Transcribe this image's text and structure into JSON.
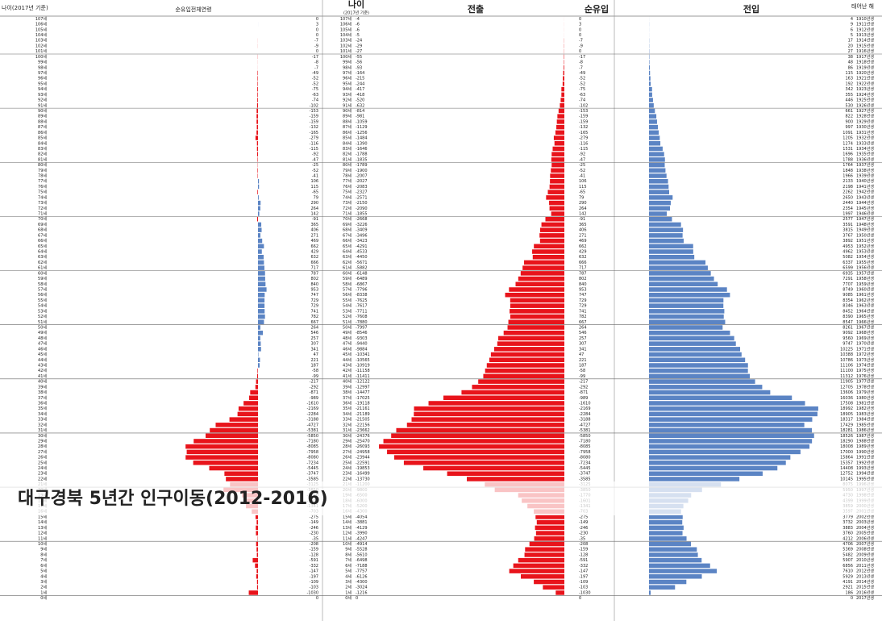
{
  "chart_data": {
    "type": "pyramid",
    "title": "대구경북 5년간 인구이동(2012-2016)",
    "headers": {
      "age_left": "나이(2017년 기준)",
      "total_net": "순유입전체연령",
      "age": "나이",
      "age_note": "(2017년 기준)",
      "out": "전출",
      "net": "순유입",
      "in": "전입",
      "birth": "태어난 해"
    },
    "ages": [
      "107세",
      "106세",
      "105세",
      "104세",
      "103세",
      "102세",
      "101세",
      "100세",
      "99세",
      "98세",
      "97세",
      "96세",
      "95세",
      "94세",
      "93세",
      "92세",
      "91세",
      "90세",
      "89세",
      "88세",
      "87세",
      "86세",
      "85세",
      "84세",
      "83세",
      "82세",
      "81세",
      "80세",
      "79세",
      "78세",
      "77세",
      "76세",
      "75세",
      "74세",
      "73세",
      "72세",
      "71세",
      "70세",
      "69세",
      "68세",
      "67세",
      "66세",
      "65세",
      "64세",
      "63세",
      "62세",
      "61세",
      "60세",
      "59세",
      "58세",
      "57세",
      "56세",
      "55세",
      "54세",
      "53세",
      "52세",
      "51세",
      "50세",
      "49세",
      "48세",
      "47세",
      "46세",
      "45세",
      "44세",
      "43세",
      "42세",
      "41세",
      "40세",
      "39세",
      "38세",
      "37세",
      "36세",
      "35세",
      "34세",
      "33세",
      "32세",
      "31세",
      "30세",
      "29세",
      "28세",
      "27세",
      "26세",
      "25세",
      "24세",
      "23세",
      "22세",
      "21세",
      "20세",
      "19세",
      "18세",
      "17세",
      "16세",
      "15세",
      "14세",
      "13세",
      "12세",
      "11세",
      "10세",
      "9세",
      "8세",
      "7세",
      "6세",
      "5세",
      "4세",
      "3세",
      "2세",
      "1세",
      "0세"
    ],
    "birth_years": [
      "1910년생",
      "1911년생",
      "1912년생",
      "1913년생",
      "1914년생",
      "1915년생",
      "1916년생",
      "1917년생",
      "1918년생",
      "1919년생",
      "1920년생",
      "1921년생",
      "1922년생",
      "1923년생",
      "1924년생",
      "1925년생",
      "1926년생",
      "1927년생",
      "1928년생",
      "1929년생",
      "1930년생",
      "1931년생",
      "1932년생",
      "1933년생",
      "1934년생",
      "1935년생",
      "1936년생",
      "1937년생",
      "1938년생",
      "1939년생",
      "1940년생",
      "1941년생",
      "1942년생",
      "1943년생",
      "1944년생",
      "1945년생",
      "1946년생",
      "1947년생",
      "1948년생",
      "1949년생",
      "1950년생",
      "1951년생",
      "1952년생",
      "1953년생",
      "1954년생",
      "1955년생",
      "1956년생",
      "1957년생",
      "1958년생",
      "1959년생",
      "1960년생",
      "1961년생",
      "1962년생",
      "1963년생",
      "1964년생",
      "1965년생",
      "1966년생",
      "1967년생",
      "1968년생",
      "1969년생",
      "1970년생",
      "1971년생",
      "1972년생",
      "1973년생",
      "1974년생",
      "1975년생",
      "1976년생",
      "1977년생",
      "1978년생",
      "1979년생",
      "1980년생",
      "1981년생",
      "1982년생",
      "1983년생",
      "1984년생",
      "1985년생",
      "1986년생",
      "1987년생",
      "1988년생",
      "1989년생",
      "1990년생",
      "1991년생",
      "1992년생",
      "1993년생",
      "1994년생",
      "1995년생",
      "1996년생",
      "1997년생",
      "1998년생",
      "1999년생",
      "2000년생",
      "2001년생",
      "2002년생",
      "2003년생",
      "2004년생",
      "2005년생",
      "2006년생",
      "2007년생",
      "2008년생",
      "2009년생",
      "2010년생",
      "2011년생",
      "2012년생",
      "2013년생",
      "2014년생",
      "2015년생",
      "2016년생",
      "2017년생"
    ],
    "out": [
      -4,
      -6,
      -6,
      -5,
      -24,
      -29,
      -27,
      -55,
      -56,
      -93,
      -164,
      -215,
      -244,
      -417,
      -418,
      -520,
      -632,
      -814,
      -981,
      -1059,
      -1129,
      -1256,
      -1484,
      -1390,
      -1646,
      -1788,
      -1835,
      -1789,
      -1900,
      -2007,
      -2027,
      -2083,
      -2327,
      -2571,
      -2150,
      -2090,
      -1855,
      -2668,
      -3226,
      -3409,
      -3496,
      -3423,
      -4291,
      -4533,
      -4450,
      -5671,
      -5882,
      -6148,
      -6489,
      -6867,
      -7796,
      -8338,
      -7625,
      -7617,
      -7711,
      -7608,
      -7880,
      -7997,
      -8546,
      -9303,
      -9440,
      -9884,
      -10341,
      -10565,
      -10919,
      -11158,
      -11411,
      -12122,
      -12997,
      -14477,
      -17025,
      -19118,
      -21161,
      -21189,
      -21505,
      -22156,
      -23662,
      -24376,
      -25470,
      -26093,
      -24958,
      -23944,
      -22591,
      -19853,
      -16499,
      -13730,
      -11200,
      -9800,
      -6500,
      -6000,
      -5200,
      -4300,
      -4054,
      -3881,
      -4129,
      -3990,
      -4247,
      -4914,
      -5528,
      -5610,
      -6498,
      -7188,
      -7757,
      -6126,
      -4300,
      -3024,
      -1216,
      0
    ],
    "net": [
      0,
      3,
      0,
      0,
      -7,
      -9,
      0,
      -17,
      -8,
      -7,
      -49,
      -52,
      -52,
      -75,
      -63,
      -74,
      -102,
      -153,
      -159,
      -159,
      -132,
      -165,
      -279,
      -116,
      -115,
      -92,
      -47,
      -25,
      -52,
      -41,
      106,
      115,
      -65,
      79,
      290,
      264,
      142,
      -91,
      365,
      406,
      271,
      469,
      662,
      429,
      632,
      666,
      717,
      787,
      802,
      840,
      953,
      747,
      729,
      729,
      741,
      782,
      667,
      264,
      546,
      257,
      307,
      341,
      47,
      221,
      187,
      -58,
      -99,
      -217,
      -292,
      -871,
      -989,
      -1610,
      -2169,
      -2284,
      -3188,
      -4727,
      -5381,
      -5850,
      -7180,
      -8085,
      -7958,
      -8080,
      -7234,
      -5445,
      -3747,
      -3585,
      -3125,
      -3850,
      -1770,
      -1601,
      -1341,
      -703,
      -275,
      -149,
      -246,
      -230,
      -35,
      -208,
      -159,
      -128,
      -591,
      -332,
      -147,
      -197,
      -109,
      -103,
      -1030,
      0
    ],
    "in": [
      4,
      9,
      6,
      5,
      17,
      20,
      27,
      38,
      48,
      86,
      115,
      163,
      192,
      342,
      355,
      446,
      530,
      661,
      822,
      900,
      997,
      1091,
      1205,
      1274,
      1531,
      1696,
      1788,
      1764,
      1848,
      1966,
      2133,
      2198,
      2262,
      2650,
      2440,
      2354,
      1997,
      2577,
      3591,
      3815,
      3767,
      3892,
      4953,
      4962,
      5082,
      6337,
      6599,
      6935,
      7291,
      7707,
      8749,
      9085,
      8354,
      8346,
      8452,
      8390,
      8547,
      8261,
      9092,
      9560,
      9747,
      10225,
      10388,
      10786,
      11106,
      11100,
      11312,
      11905,
      12705,
      13606,
      16036,
      17508,
      18992,
      18905,
      18317,
      17429,
      18281,
      18526,
      18290,
      18008,
      17000,
      15864,
      15357,
      14408,
      12752,
      10145,
      8075,
      5950,
      4730,
      4399,
      3859,
      3597,
      3779,
      3732,
      3883,
      3760,
      4212,
      4706,
      5369,
      5482,
      5907,
      6856,
      7610,
      5929,
      4191,
      2921,
      186,
      0
    ],
    "out_color": "#e8141b",
    "in_color": "#5b84c4"
  }
}
